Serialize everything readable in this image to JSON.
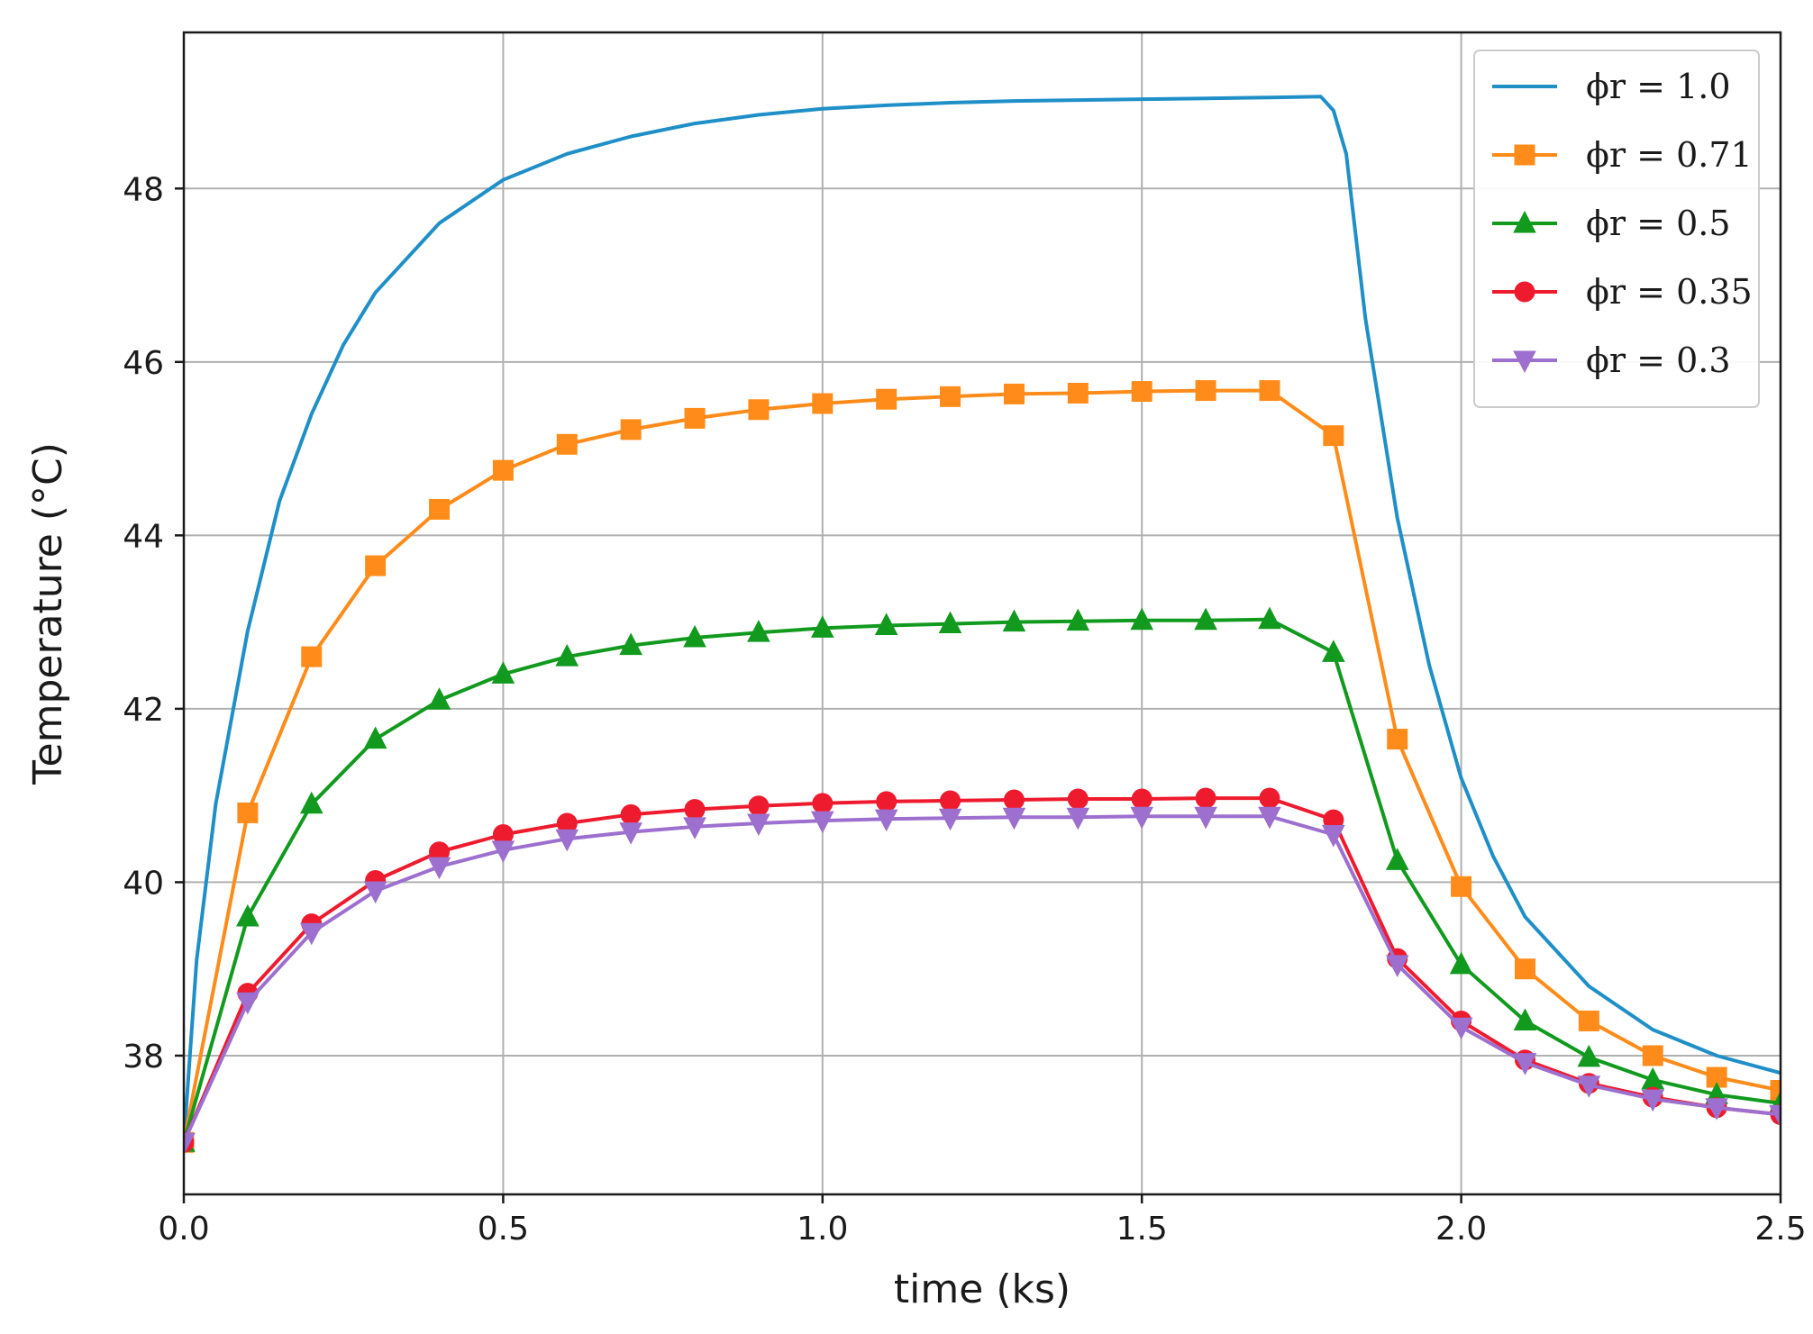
{
  "chart_data": {
    "type": "line",
    "xlabel": "time (ks)",
    "ylabel": "Temperature (°C)",
    "xlim": [
      0.0,
      2.5
    ],
    "ylim": [
      36.4,
      49.8
    ],
    "xticks": [
      0.0,
      0.5,
      1.0,
      1.5,
      2.0,
      2.5
    ],
    "xtick_labels": [
      "0.0",
      "0.5",
      "1.0",
      "1.5",
      "2.0",
      "2.5"
    ],
    "yticks": [
      38,
      40,
      42,
      44,
      46,
      48
    ],
    "ytick_labels": [
      "38",
      "40",
      "42",
      "44",
      "46",
      "48"
    ],
    "grid": true,
    "legend_position": "top-right",
    "series": [
      {
        "name": "ϕr = 1.0",
        "color": "#1f8fc8",
        "marker": "none",
        "x": [
          0.0,
          0.02,
          0.05,
          0.1,
          0.15,
          0.2,
          0.25,
          0.3,
          0.35,
          0.4,
          0.5,
          0.6,
          0.7,
          0.8,
          0.9,
          1.0,
          1.1,
          1.2,
          1.3,
          1.4,
          1.5,
          1.6,
          1.7,
          1.78,
          1.8,
          1.82,
          1.85,
          1.9,
          1.95,
          2.0,
          2.05,
          2.1,
          2.2,
          2.3,
          2.4,
          2.5
        ],
        "y": [
          37.0,
          39.1,
          40.9,
          42.9,
          44.4,
          45.4,
          46.2,
          46.8,
          47.2,
          47.6,
          48.1,
          48.4,
          48.6,
          48.75,
          48.85,
          48.92,
          48.96,
          48.99,
          49.01,
          49.02,
          49.03,
          49.04,
          49.05,
          49.06,
          48.9,
          48.4,
          46.5,
          44.2,
          42.5,
          41.2,
          40.3,
          39.6,
          38.8,
          38.3,
          38.0,
          37.8
        ]
      },
      {
        "name": "ϕr = 0.71",
        "color": "#ff8c1a",
        "marker": "square",
        "x": [
          0.0,
          0.1,
          0.2,
          0.3,
          0.4,
          0.5,
          0.6,
          0.7,
          0.8,
          0.9,
          1.0,
          1.1,
          1.2,
          1.3,
          1.4,
          1.5,
          1.6,
          1.7,
          1.8,
          1.9,
          2.0,
          2.1,
          2.2,
          2.3,
          2.4,
          2.5
        ],
        "y": [
          37.0,
          40.8,
          42.6,
          43.65,
          44.3,
          44.75,
          45.05,
          45.22,
          45.35,
          45.45,
          45.52,
          45.57,
          45.6,
          45.63,
          45.64,
          45.66,
          45.67,
          45.67,
          45.15,
          41.65,
          39.95,
          39.0,
          38.4,
          38.0,
          37.75,
          37.6
        ]
      },
      {
        "name": "ϕr = 0.5",
        "color": "#119a1e",
        "marker": "triangle-up",
        "x": [
          0.0,
          0.1,
          0.2,
          0.3,
          0.4,
          0.5,
          0.6,
          0.7,
          0.8,
          0.9,
          1.0,
          1.1,
          1.2,
          1.3,
          1.4,
          1.5,
          1.6,
          1.7,
          1.8,
          1.9,
          2.0,
          2.1,
          2.2,
          2.3,
          2.4,
          2.5
        ],
        "y": [
          37.0,
          39.6,
          40.9,
          41.65,
          42.1,
          42.4,
          42.6,
          42.73,
          42.82,
          42.88,
          42.93,
          42.96,
          42.98,
          43.0,
          43.01,
          43.02,
          43.02,
          43.03,
          42.65,
          40.25,
          39.05,
          38.4,
          37.98,
          37.72,
          37.55,
          37.45
        ]
      },
      {
        "name": "ϕr = 0.35",
        "color": "#ee1b2e",
        "marker": "circle",
        "x": [
          0.0,
          0.1,
          0.2,
          0.3,
          0.4,
          0.5,
          0.6,
          0.7,
          0.8,
          0.9,
          1.0,
          1.1,
          1.2,
          1.3,
          1.4,
          1.5,
          1.6,
          1.7,
          1.8,
          1.9,
          2.0,
          2.1,
          2.2,
          2.3,
          2.4,
          2.5
        ],
        "y": [
          37.0,
          38.72,
          39.52,
          40.02,
          40.35,
          40.55,
          40.68,
          40.78,
          40.84,
          40.88,
          40.91,
          40.93,
          40.94,
          40.95,
          40.96,
          40.96,
          40.97,
          40.97,
          40.72,
          39.12,
          38.4,
          37.95,
          37.68,
          37.52,
          37.4,
          37.32
        ]
      },
      {
        "name": "ϕr = 0.3",
        "color": "#9d6fcf",
        "marker": "triangle-down",
        "x": [
          0.0,
          0.1,
          0.2,
          0.3,
          0.4,
          0.5,
          0.6,
          0.7,
          0.8,
          0.9,
          1.0,
          1.1,
          1.2,
          1.3,
          1.4,
          1.5,
          1.6,
          1.7,
          1.8,
          1.9,
          2.0,
          2.1,
          2.2,
          2.3,
          2.4,
          2.5
        ],
        "y": [
          37.0,
          38.62,
          39.42,
          39.9,
          40.18,
          40.37,
          40.5,
          40.58,
          40.64,
          40.68,
          40.71,
          40.73,
          40.74,
          40.75,
          40.75,
          40.76,
          40.76,
          40.76,
          40.55,
          39.05,
          38.33,
          37.92,
          37.66,
          37.5,
          37.4,
          37.32
        ]
      }
    ]
  }
}
